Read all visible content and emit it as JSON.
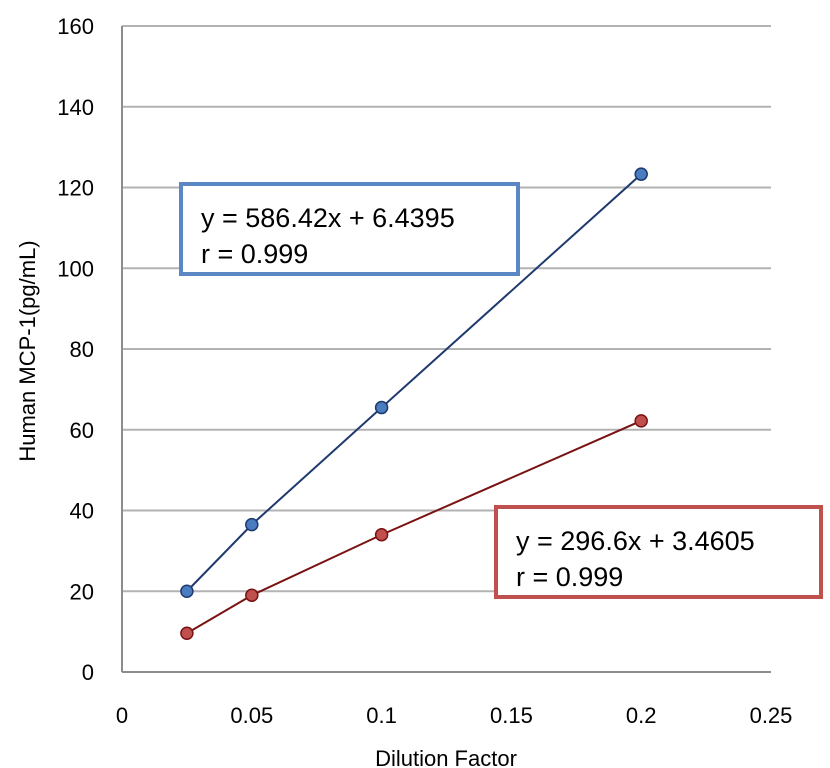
{
  "chart_data": {
    "type": "scatter",
    "xlabel": "Dilution Factor",
    "ylabel": "Human MCP-1(pg/mL)",
    "xlim": [
      0,
      0.25
    ],
    "ylim": [
      0,
      160
    ],
    "x_ticks": [
      "0",
      "0.05",
      "0.1",
      "0.15",
      "0.2",
      "0.25"
    ],
    "y_ticks": [
      "0",
      "20",
      "40",
      "60",
      "80",
      "100",
      "120",
      "140",
      "160"
    ],
    "grid": "horizontal",
    "series": [
      {
        "color": "#1f3a6e",
        "marker_color": "#4a7cc0",
        "points": [
          {
            "x": 0.025,
            "y": 20
          },
          {
            "x": 0.05,
            "y": 36.5
          },
          {
            "x": 0.1,
            "y": 65.5
          },
          {
            "x": 0.2,
            "y": 123.3
          }
        ],
        "equation": "y = 586.42x + 6.4395",
        "r": "r = 0.999",
        "box_color": "#5b87c5"
      },
      {
        "color": "#7a1212",
        "marker_color": "#c0504d",
        "points": [
          {
            "x": 0.025,
            "y": 9.6
          },
          {
            "x": 0.05,
            "y": 19
          },
          {
            "x": 0.1,
            "y": 34
          },
          {
            "x": 0.2,
            "y": 62.2
          }
        ],
        "equation": "y = 296.6x + 3.4605",
        "r": "r = 0.999",
        "box_color": "#c0504d"
      }
    ]
  }
}
